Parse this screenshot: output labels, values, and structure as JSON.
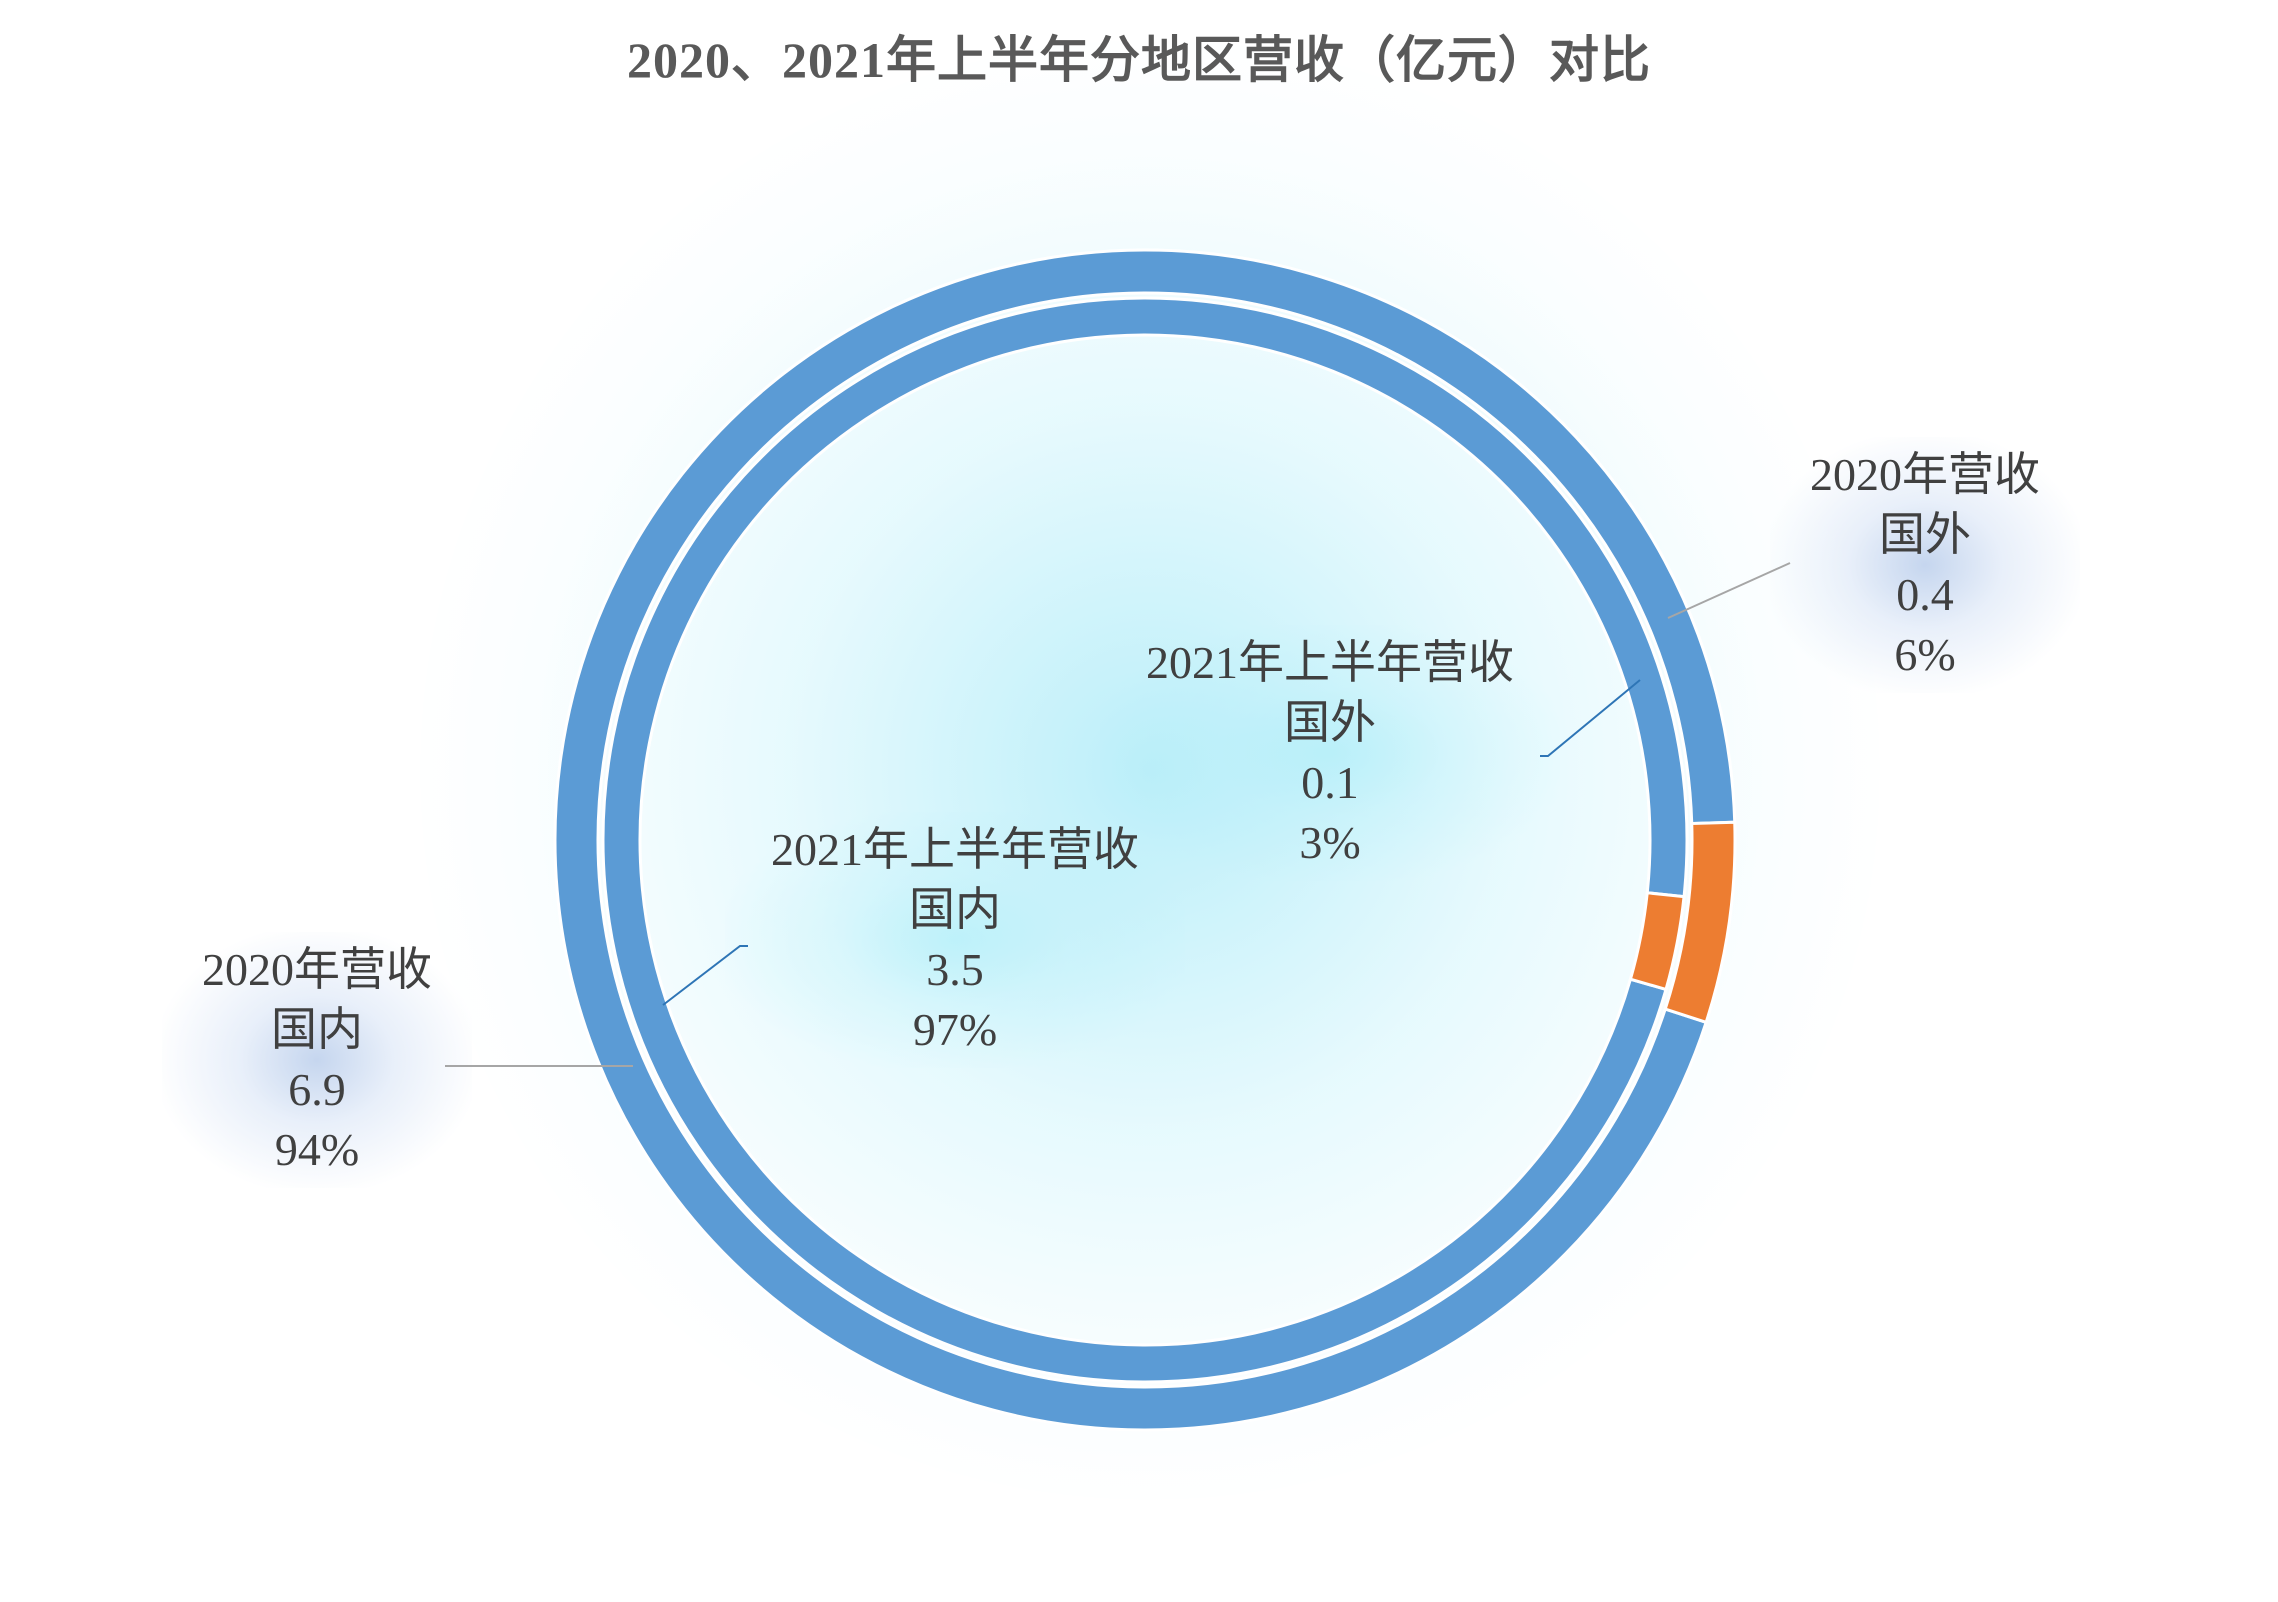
{
  "chart_data": {
    "type": "doughnut",
    "title": "2020、2021年上半年分地区营收（亿元）对比",
    "categories": [
      "国内",
      "国外"
    ],
    "series": [
      {
        "name": "2020年营收",
        "ring": "outer",
        "values": [
          6.9,
          0.4
        ],
        "percent_labels": [
          "94%",
          "6%"
        ]
      },
      {
        "name": "2021年上半年营收",
        "ring": "inner",
        "values": [
          3.5,
          0.1
        ],
        "percent_labels": [
          "97%",
          "3%"
        ]
      }
    ],
    "colors": {
      "国内": "#5B9BD5",
      "国外": "#ED7D31"
    }
  },
  "labels": {
    "outer_domestic": {
      "series": "2020年营收",
      "category": "国内",
      "value": "6.9",
      "percent": "94%"
    },
    "outer_foreign": {
      "series": "2020年营收",
      "category": "国外",
      "value": "0.4",
      "percent": "6%"
    },
    "inner_domestic": {
      "series": "2021年上半年营收",
      "category": "国内",
      "value": "3.5",
      "percent": "97%"
    },
    "inner_foreign": {
      "series": "2021年上半年营收",
      "category": "国外",
      "value": "0.1",
      "percent": "3%"
    }
  }
}
